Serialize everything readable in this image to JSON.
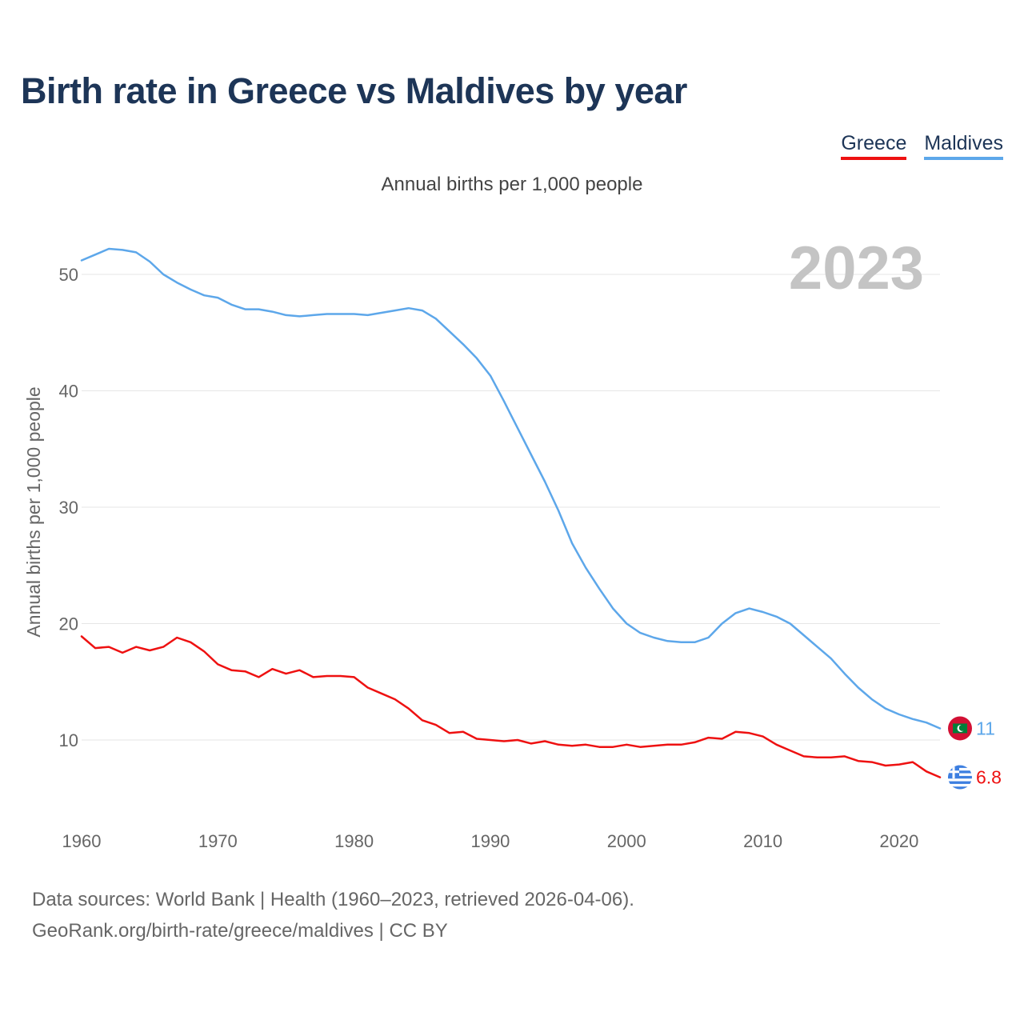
{
  "title": "Birth rate in Greece vs Maldives by year",
  "subtitle": "Annual births per 1,000 people",
  "legend": [
    {
      "label": "Greece",
      "color": "#ee1111"
    },
    {
      "label": "Maldives",
      "color": "#5da7ea"
    }
  ],
  "year_display": "2023",
  "source_line1": "Data sources: World Bank | Health (1960–2023, retrieved 2026-04-06).",
  "source_line2": "GeoRank.org/birth-rate/greece/maldives | CC BY",
  "chart_data": {
    "type": "line",
    "title": "Birth rate in Greece vs Maldives by year",
    "xlabel": "",
    "ylabel": "Annual births per 1,000 people",
    "xlim": [
      1960,
      2023
    ],
    "ylim": [
      4.5,
      56
    ],
    "x_ticks": [
      1960,
      1970,
      1980,
      1990,
      2000,
      2010,
      2020
    ],
    "y_ticks": [
      10,
      20,
      30,
      40,
      50
    ],
    "x": [
      1960,
      1961,
      1962,
      1963,
      1964,
      1965,
      1966,
      1967,
      1968,
      1969,
      1970,
      1971,
      1972,
      1973,
      1974,
      1975,
      1976,
      1977,
      1978,
      1979,
      1980,
      1981,
      1982,
      1983,
      1984,
      1985,
      1986,
      1987,
      1988,
      1989,
      1990,
      1991,
      1992,
      1993,
      1994,
      1995,
      1996,
      1997,
      1998,
      1999,
      2000,
      2001,
      2002,
      2003,
      2004,
      2005,
      2006,
      2007,
      2008,
      2009,
      2010,
      2011,
      2012,
      2013,
      2014,
      2015,
      2016,
      2017,
      2018,
      2019,
      2020,
      2021,
      2022,
      2023
    ],
    "series": [
      {
        "name": "Greece",
        "color": "#ee1111",
        "end_label": "6.8",
        "flag": "greece-flag-icon",
        "values": [
          18.9,
          17.9,
          18.0,
          17.5,
          18.0,
          17.7,
          18.0,
          18.8,
          18.4,
          17.6,
          16.5,
          16.0,
          15.9,
          15.4,
          16.1,
          15.7,
          16.0,
          15.4,
          15.5,
          15.5,
          15.4,
          14.5,
          14.0,
          13.5,
          12.7,
          11.7,
          11.3,
          10.6,
          10.7,
          10.1,
          10.0,
          9.9,
          10.0,
          9.7,
          9.9,
          9.6,
          9.5,
          9.6,
          9.4,
          9.4,
          9.6,
          9.4,
          9.5,
          9.6,
          9.6,
          9.8,
          10.2,
          10.1,
          10.7,
          10.6,
          10.3,
          9.6,
          9.1,
          8.6,
          8.5,
          8.5,
          8.6,
          8.2,
          8.1,
          7.8,
          7.9,
          8.1,
          7.3,
          6.8
        ]
      },
      {
        "name": "Maldives",
        "color": "#5da7ea",
        "end_label": "11",
        "flag": "maldives-flag-icon",
        "values": [
          51.2,
          51.7,
          52.2,
          52.1,
          51.9,
          51.1,
          50.0,
          49.3,
          48.7,
          48.2,
          48.0,
          47.4,
          47.0,
          47.0,
          46.8,
          46.5,
          46.4,
          46.5,
          46.6,
          46.6,
          46.6,
          46.5,
          46.7,
          46.9,
          47.1,
          46.9,
          46.2,
          45.1,
          44.0,
          42.8,
          41.3,
          39.1,
          36.8,
          34.5,
          32.2,
          29.7,
          26.9,
          24.8,
          23.0,
          21.3,
          20.0,
          19.2,
          18.8,
          18.5,
          18.4,
          18.4,
          18.8,
          20.0,
          20.9,
          21.3,
          21.0,
          20.6,
          20.0,
          19.0,
          18.0,
          17.0,
          15.7,
          14.5,
          13.5,
          12.7,
          12.2,
          11.8,
          11.5,
          11.0
        ]
      }
    ]
  }
}
